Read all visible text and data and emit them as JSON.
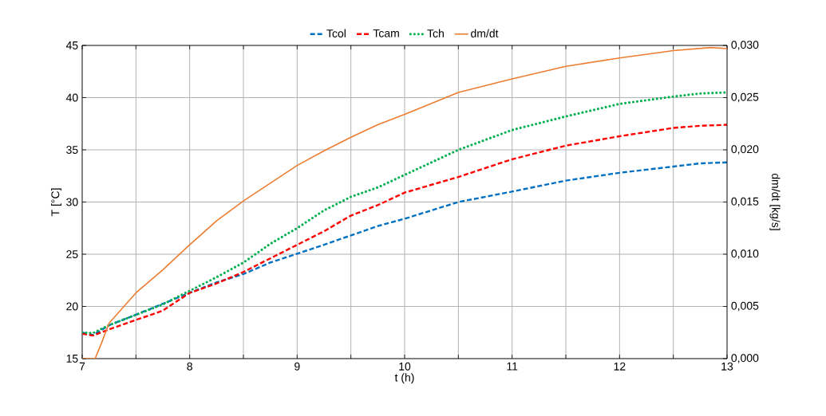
{
  "chart_data": {
    "type": "line",
    "xlabel": "t (h)",
    "ylabel": "T [°C]",
    "y2label": "dm/dt [kg/s]",
    "xlim": [
      7,
      13
    ],
    "ylim": [
      15,
      45
    ],
    "y2lim": [
      0,
      0.03
    ],
    "xticks": [
      7,
      {
        "value": 7.5,
        "label": null
      },
      8,
      {
        "value": 8.5,
        "label": null
      },
      9,
      {
        "value": 9.5,
        "label": null
      },
      10,
      {
        "value": 10.5,
        "label": null
      },
      11,
      {
        "value": 11.5,
        "label": null
      },
      12,
      {
        "value": 12.5,
        "label": null
      },
      13
    ],
    "yticks": [
      15,
      20,
      25,
      30,
      35,
      40,
      45
    ],
    "y2ticks": [
      {
        "value": 0,
        "label": "0,000"
      },
      {
        "value": 0.005,
        "label": "0,005"
      },
      {
        "value": 0.01,
        "label": "0,010"
      },
      {
        "value": 0.015,
        "label": "0,015"
      },
      {
        "value": 0.02,
        "label": "0,020"
      },
      {
        "value": 0.025,
        "label": "0,025"
      },
      {
        "value": 0.03,
        "label": "0,030"
      }
    ],
    "grid": true,
    "legend": "top",
    "marker": "none",
    "x": [
      7,
      7.1,
      7.25,
      7.5,
      7.75,
      8,
      8.25,
      8.5,
      8.75,
      9,
      9.25,
      9.5,
      9.75,
      10,
      10.5,
      11,
      11.5,
      12,
      12.5,
      12.75,
      13
    ],
    "series": [
      {
        "name": "Tcol",
        "color": "#0070c0",
        "line_style": "dashed",
        "values": [
          17.5,
          17.25,
          18.2,
          19.2,
          20.25,
          21.3,
          22.3,
          23.1,
          24.2,
          25.05,
          25.9,
          26.8,
          27.7,
          28.4,
          30.0,
          31.0,
          32.05,
          32.8,
          33.4,
          33.7,
          33.8
        ]
      },
      {
        "name": "Tcam",
        "color": "#ff0000",
        "line_style": "dashed",
        "values": [
          17.4,
          17.2,
          17.8,
          18.7,
          19.6,
          21.3,
          22.2,
          23.3,
          24.6,
          25.9,
          27.2,
          28.7,
          29.7,
          30.9,
          32.4,
          34.1,
          35.4,
          36.3,
          37.1,
          37.3,
          37.4
        ]
      },
      {
        "name": "Tch",
        "color": "#00b050",
        "line_style": "dotted",
        "values": [
          17.5,
          17.45,
          18.2,
          19.2,
          20.2,
          21.5,
          22.8,
          24.2,
          26.0,
          27.5,
          29.2,
          30.5,
          31.4,
          32.6,
          35.0,
          36.9,
          38.2,
          39.4,
          40.1,
          40.4,
          40.5
        ]
      },
      {
        "name": "dm/dt",
        "color": "#ed7d31",
        "line_style": "solid",
        "axis": "y2",
        "x": [
          7,
          7.12,
          7.18,
          7.25,
          7.5,
          7.75,
          8,
          8.25,
          8.5,
          8.75,
          9,
          9.25,
          9.5,
          9.75,
          10,
          10.5,
          11,
          11.5,
          12,
          12.5,
          12.85,
          13
        ],
        "values": [
          0,
          0,
          0.0015,
          0.0034,
          0.0063,
          0.0085,
          0.0109,
          0.0132,
          0.0151,
          0.0168,
          0.0185,
          0.0199,
          0.0212,
          0.0224,
          0.0234,
          0.0255,
          0.0268,
          0.028,
          0.0288,
          0.0295,
          0.0298,
          0.0297
        ]
      }
    ]
  }
}
